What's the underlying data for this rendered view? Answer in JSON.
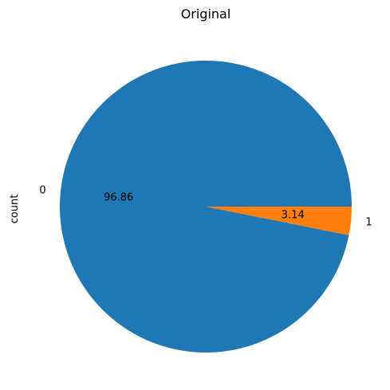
{
  "chart_data": {
    "type": "pie",
    "title": "Original",
    "ylabel": "count",
    "categories": [
      "0",
      "1"
    ],
    "values": [
      96.86,
      3.14
    ],
    "value_labels": [
      "96.86",
      "3.14"
    ],
    "colors": [
      "#1f77b4",
      "#ff7f0e"
    ],
    "start_angle": 0,
    "direction": "counterclockwise",
    "legend": "none"
  }
}
